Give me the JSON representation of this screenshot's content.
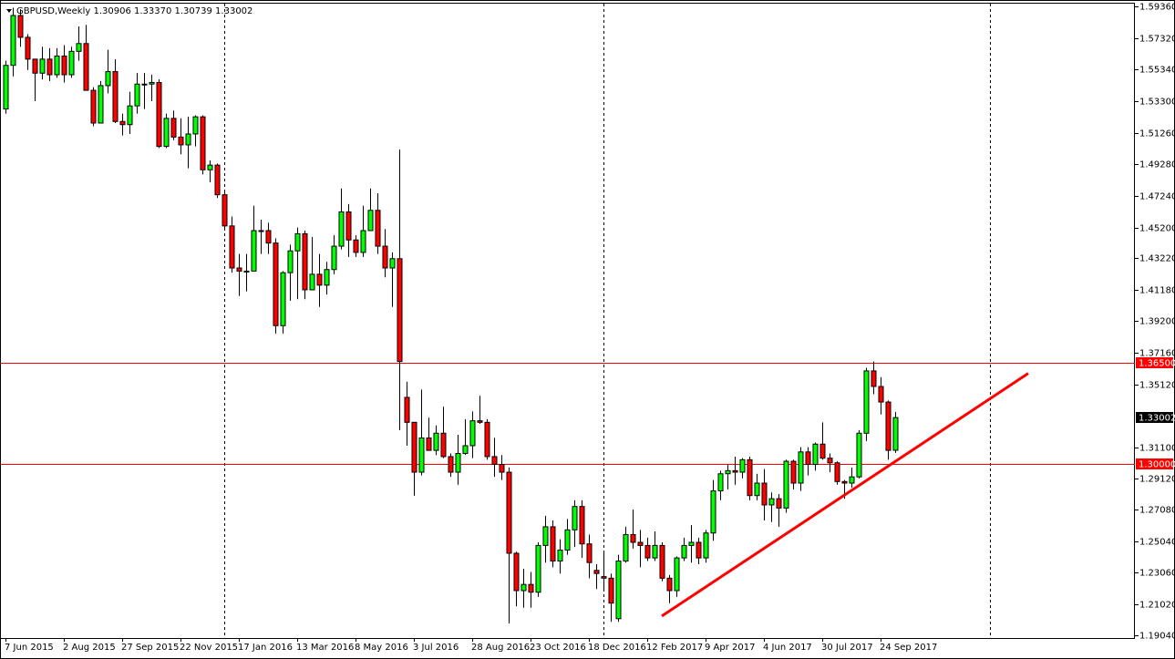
{
  "chart_data": {
    "type": "candlestick",
    "title": "GBPUSD,Weekly  1.30906 1.33370 1.30739 1.33002",
    "categories": [
      "7 Jun 2015",
      null,
      null,
      null,
      null,
      null,
      null,
      null,
      "2 Aug 2015",
      null,
      null,
      null,
      null,
      null,
      null,
      null,
      "27 Sep 2015",
      null,
      null,
      null,
      null,
      null,
      null,
      null,
      "22 Nov 2015",
      null,
      null,
      null,
      null,
      null,
      null,
      null,
      "17 Jan 2016",
      null,
      null,
      null,
      null,
      null,
      null,
      null,
      "13 Mar 2016",
      null,
      null,
      null,
      null,
      null,
      null,
      null,
      "8 May 2016",
      null,
      null,
      null,
      null,
      null,
      null,
      null,
      "3 Jul 2016",
      null,
      null,
      null,
      null,
      null,
      null,
      null,
      "28 Aug 2016",
      null,
      null,
      null,
      null,
      null,
      null,
      null,
      "23 Oct 2016",
      null,
      null,
      null,
      null,
      null,
      null,
      null,
      "18 Dec 2016",
      null,
      null,
      null,
      null,
      null,
      null,
      null,
      "12 Feb 2017",
      null,
      null,
      null,
      null,
      null,
      null,
      null,
      "9 Apr 2017",
      null,
      null,
      null,
      null,
      null,
      null,
      null,
      "4 Jun 2017",
      null,
      null,
      null,
      null,
      null,
      null,
      null,
      "30 Jul 2017",
      null,
      null,
      null,
      null,
      null,
      null,
      null,
      "24 Sep 2017",
      null,
      null
    ],
    "open": [
      1.528,
      1.556,
      1.588,
      1.574,
      1.56,
      1.551,
      1.56,
      1.55,
      1.562,
      1.55,
      1.565,
      1.57,
      1.54,
      1.519,
      1.543,
      1.552,
      1.52,
      1.518,
      1.53,
      1.544,
      1.544,
      1.545,
      1.504,
      1.522,
      1.51,
      1.505,
      1.512,
      1.523,
      1.489,
      1.492,
      1.473,
      1.453,
      1.426,
      1.424,
      1.424,
      1.45,
      1.45,
      1.442,
      1.389,
      1.423,
      1.437,
      1.448,
      1.412,
      1.422,
      1.415,
      1.425,
      1.44,
      1.462,
      1.444,
      1.436,
      1.45,
      1.463,
      1.44,
      1.426,
      1.432,
      1.343,
      1.327,
      1.295,
      1.317,
      1.309,
      1.32,
      1.305,
      1.295,
      1.307,
      1.312,
      1.328,
      1.327,
      1.305,
      1.3,
      1.295,
      1.243,
      1.219,
      1.223,
      1.218,
      1.248,
      1.26,
      1.238,
      1.245,
      1.258,
      1.273,
      1.249,
      1.232,
      1.228,
      1.227,
      1.201,
      1.238,
      1.255,
      1.25,
      1.248,
      1.24,
      1.248,
      1.227,
      1.219,
      1.24,
      1.248,
      1.25,
      1.24,
      1.256,
      1.283,
      1.294,
      1.296,
      1.295,
      1.303,
      1.28,
      1.288,
      1.274,
      1.278,
      1.272,
      1.302,
      1.288,
      1.308,
      1.3,
      1.313,
      1.304,
      1.301,
      1.289,
      1.288,
      1.292,
      1.32,
      1.36,
      1.35,
      1.34,
      1.30906
    ],
    "high": [
      1.559,
      1.593,
      1.592,
      1.576,
      1.56,
      1.568,
      1.567,
      1.567,
      1.569,
      1.568,
      1.581,
      1.582,
      1.542,
      1.546,
      1.566,
      1.56,
      1.525,
      1.539,
      1.551,
      1.551,
      1.55,
      1.547,
      1.525,
      1.527,
      1.522,
      1.523,
      1.524,
      1.524,
      1.495,
      1.493,
      1.476,
      1.459,
      1.435,
      1.435,
      1.466,
      1.457,
      1.455,
      1.445,
      1.424,
      1.441,
      1.452,
      1.45,
      1.446,
      1.435,
      1.43,
      1.447,
      1.477,
      1.467,
      1.447,
      1.466,
      1.477,
      1.474,
      1.451,
      1.436,
      1.502,
      1.353,
      1.327,
      1.348,
      1.33,
      1.325,
      1.337,
      1.307,
      1.319,
      1.329,
      1.334,
      1.344,
      1.329,
      1.317,
      1.306,
      1.298,
      1.244,
      1.233,
      1.231,
      1.25,
      1.267,
      1.264,
      1.252,
      1.265,
      1.277,
      1.277,
      1.255,
      1.236,
      1.243,
      1.23,
      1.242,
      1.26,
      1.271,
      1.258,
      1.253,
      1.257,
      1.25,
      1.229,
      1.241,
      1.253,
      1.261,
      1.253,
      1.258,
      1.29,
      1.296,
      1.3,
      1.305,
      1.304,
      1.305,
      1.294,
      1.297,
      1.282,
      1.281,
      1.303,
      1.303,
      1.311,
      1.311,
      1.314,
      1.327,
      1.307,
      1.302,
      1.29,
      1.298,
      1.322,
      1.362,
      1.366,
      1.356,
      1.341,
      1.3337
    ],
    "low": [
      1.525,
      1.549,
      1.568,
      1.553,
      1.533,
      1.547,
      1.546,
      1.548,
      1.545,
      1.548,
      1.559,
      1.54,
      1.517,
      1.519,
      1.538,
      1.519,
      1.511,
      1.512,
      1.525,
      1.528,
      1.533,
      1.503,
      1.503,
      1.508,
      1.499,
      1.49,
      1.504,
      1.486,
      1.481,
      1.471,
      1.451,
      1.423,
      1.408,
      1.411,
      1.424,
      1.435,
      1.435,
      1.384,
      1.384,
      1.405,
      1.406,
      1.406,
      1.412,
      1.401,
      1.409,
      1.422,
      1.438,
      1.433,
      1.433,
      1.433,
      1.45,
      1.435,
      1.42,
      1.401,
      1.322,
      1.312,
      1.28,
      1.293,
      1.309,
      1.306,
      1.304,
      1.292,
      1.287,
      1.306,
      1.304,
      1.326,
      1.303,
      1.292,
      1.29,
      1.198,
      1.209,
      1.208,
      1.208,
      1.215,
      1.237,
      1.234,
      1.23,
      1.242,
      1.247,
      1.24,
      1.227,
      1.22,
      1.22,
      1.199,
      1.199,
      1.237,
      1.246,
      1.234,
      1.238,
      1.238,
      1.225,
      1.211,
      1.215,
      1.238,
      1.237,
      1.236,
      1.237,
      1.251,
      1.277,
      1.284,
      1.287,
      1.291,
      1.277,
      1.277,
      1.264,
      1.263,
      1.26,
      1.269,
      1.284,
      1.283,
      1.293,
      1.296,
      1.303,
      1.295,
      1.287,
      1.278,
      1.285,
      1.291,
      1.315,
      1.345,
      1.332,
      1.303,
      1.30739
    ],
    "close": [
      1.556,
      1.588,
      1.574,
      1.56,
      1.551,
      1.56,
      1.55,
      1.562,
      1.55,
      1.565,
      1.57,
      1.54,
      1.519,
      1.543,
      1.552,
      1.52,
      1.518,
      1.53,
      1.544,
      1.544,
      1.545,
      1.504,
      1.522,
      1.51,
      1.505,
      1.512,
      1.523,
      1.489,
      1.492,
      1.473,
      1.453,
      1.426,
      1.424,
      1.424,
      1.45,
      1.45,
      1.442,
      1.389,
      1.423,
      1.437,
      1.448,
      1.412,
      1.422,
      1.415,
      1.425,
      1.44,
      1.462,
      1.444,
      1.436,
      1.45,
      1.463,
      1.44,
      1.426,
      1.432,
      1.366,
      1.327,
      1.295,
      1.317,
      1.309,
      1.32,
      1.305,
      1.295,
      1.307,
      1.312,
      1.328,
      1.327,
      1.305,
      1.3,
      1.295,
      1.243,
      1.219,
      1.223,
      1.218,
      1.248,
      1.26,
      1.238,
      1.245,
      1.258,
      1.273,
      1.249,
      1.237,
      1.23,
      1.227,
      1.211,
      1.238,
      1.255,
      1.25,
      1.248,
      1.24,
      1.248,
      1.227,
      1.219,
      1.24,
      1.248,
      1.25,
      1.24,
      1.256,
      1.283,
      1.294,
      1.296,
      1.295,
      1.303,
      1.28,
      1.288,
      1.274,
      1.278,
      1.272,
      1.302,
      1.288,
      1.308,
      1.3,
      1.313,
      1.304,
      1.301,
      1.289,
      1.288,
      1.292,
      1.32,
      1.36,
      1.35,
      1.34,
      1.309,
      1.33002
    ],
    "up_color": "#00ff00",
    "down_color": "#ff0000",
    "ylim": [
      1.1886,
      1.5956
    ],
    "yticks": [
      {
        "value": 1.5936,
        "label": "1.59360"
      },
      {
        "value": 1.5732,
        "label": "1.57320"
      },
      {
        "value": 1.5534,
        "label": "1.55340"
      },
      {
        "value": 1.533,
        "label": "1.53300"
      },
      {
        "value": 1.5126,
        "label": "1.51260"
      },
      {
        "value": 1.4928,
        "label": "1.49280"
      },
      {
        "value": 1.4724,
        "label": "1.47240"
      },
      {
        "value": 1.452,
        "label": "1.45200"
      },
      {
        "value": 1.4322,
        "label": "1.43220"
      },
      {
        "value": 1.4118,
        "label": "1.41180"
      },
      {
        "value": 1.392,
        "label": "1.39200"
      },
      {
        "value": 1.3716,
        "label": "1.37160"
      },
      {
        "value": 1.3512,
        "label": "1.35120"
      },
      {
        "value": 1.311,
        "label": "1.31100"
      },
      {
        "value": 1.2912,
        "label": "1.29120"
      },
      {
        "value": 1.2708,
        "label": "1.27080"
      },
      {
        "value": 1.2504,
        "label": "1.25040"
      },
      {
        "value": 1.2306,
        "label": "1.23060"
      },
      {
        "value": 1.2102,
        "label": "1.21020"
      },
      {
        "value": 1.1904,
        "label": "1.19040"
      }
    ],
    "levels": [
      {
        "value": 1.365,
        "label": "1.36500",
        "color": "#ff0000"
      },
      {
        "value": 1.3,
        "label": "1.30000",
        "color": "#ff0000"
      }
    ],
    "last_price": {
      "value": 1.33002,
      "label": "1.33002",
      "color": "#000000"
    },
    "separators": [
      30,
      82,
      135
    ],
    "trendline": {
      "x": [
        90,
        140.25
      ],
      "y": [
        1.2027,
        1.3584
      ],
      "color": "#ff0000"
    }
  }
}
